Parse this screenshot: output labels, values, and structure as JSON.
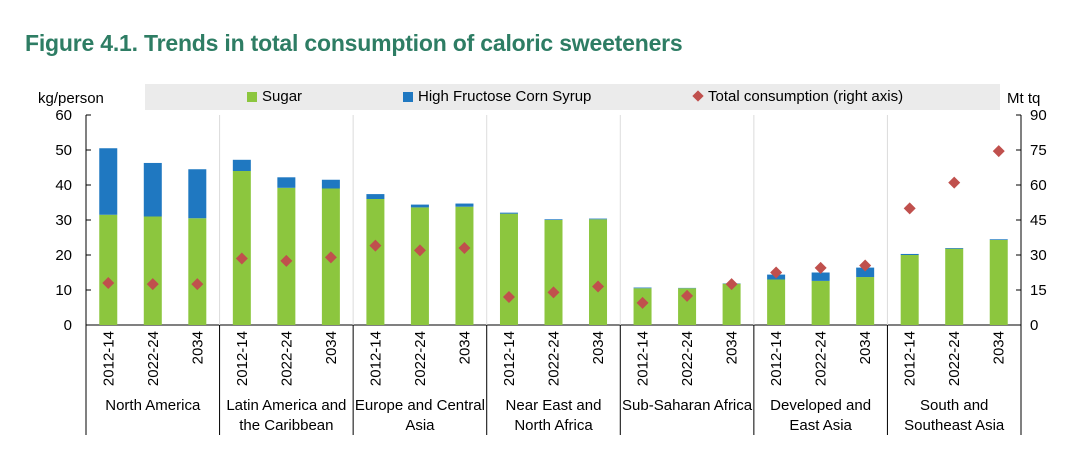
{
  "title": "Figure 4.1. Trends in total consumption of caloric sweeteners",
  "left_axis_label": "kg/person",
  "right_axis_label": "Mt tq",
  "legend": [
    {
      "label": "Sugar",
      "marker": "square",
      "color": "#8cc63e"
    },
    {
      "label": "High Fructose Corn Syrup",
      "marker": "square",
      "color": "#1f78c1"
    },
    {
      "label": "Total consumption (right axis)",
      "marker": "diamond",
      "color": "#c0504d"
    }
  ],
  "chart_data": {
    "type": "bar",
    "stacked": true,
    "title": "Figure 4.1. Trends in total consumption of caloric sweeteners",
    "ylabel": "kg/person",
    "y2label": "Mt tq",
    "ylim": [
      0,
      60
    ],
    "y2lim": [
      0,
      90
    ],
    "yticks": [
      "0",
      "10",
      "20",
      "30",
      "40",
      "50",
      "60"
    ],
    "y2ticks": [
      "0",
      "15",
      "30",
      "45",
      "60",
      "75",
      "90"
    ],
    "categories": [
      "2012-14",
      "2022-24",
      "2034",
      "2012-14",
      "2022-24",
      "2034",
      "2012-14",
      "2022-24",
      "2034",
      "2012-14",
      "2022-24",
      "2034",
      "2012-14",
      "2022-24",
      "2034",
      "2012-14",
      "2022-24",
      "2034",
      "2012-14",
      "2022-24",
      "2034"
    ],
    "groups": [
      {
        "label_lines": [
          "North America"
        ]
      },
      {
        "label_lines": [
          "Latin America and",
          "the Caribbean"
        ]
      },
      {
        "label_lines": [
          "Europe and Central",
          "Asia"
        ]
      },
      {
        "label_lines": [
          "Near East and",
          "North Africa"
        ]
      },
      {
        "label_lines": [
          "Sub-Saharan Africa"
        ]
      },
      {
        "label_lines": [
          "Developed and",
          "East Asia"
        ]
      },
      {
        "label_lines": [
          "South and",
          "Southeast Asia"
        ]
      }
    ],
    "series": [
      {
        "name": "Sugar",
        "axis": "left",
        "color": "#8cc63e",
        "values": [
          31.5,
          31.0,
          30.5,
          44.0,
          39.2,
          39.0,
          36.0,
          33.6,
          33.8,
          31.8,
          30.0,
          30.2,
          10.5,
          10.5,
          11.8,
          13.0,
          12.6,
          13.7,
          20.0,
          21.8,
          24.3
        ]
      },
      {
        "name": "High Fructose Corn Syrup",
        "axis": "left",
        "color": "#1f78c1",
        "values": [
          19.0,
          15.3,
          14.0,
          3.2,
          3.0,
          2.5,
          1.4,
          0.8,
          0.9,
          0.3,
          0.2,
          0.2,
          0.2,
          0.1,
          0.1,
          1.4,
          2.4,
          2.7,
          0.3,
          0.2,
          0.2
        ]
      },
      {
        "name": "Total consumption (right axis)",
        "axis": "right",
        "type": "scatter",
        "marker": "diamond",
        "color": "#c0504d",
        "values": [
          18,
          17.5,
          17.5,
          28.5,
          27.5,
          29,
          34,
          32,
          33,
          12,
          14,
          16.5,
          9.5,
          12.5,
          17.5,
          22.5,
          24.5,
          25.5,
          50,
          61,
          74.5
        ]
      }
    ]
  }
}
